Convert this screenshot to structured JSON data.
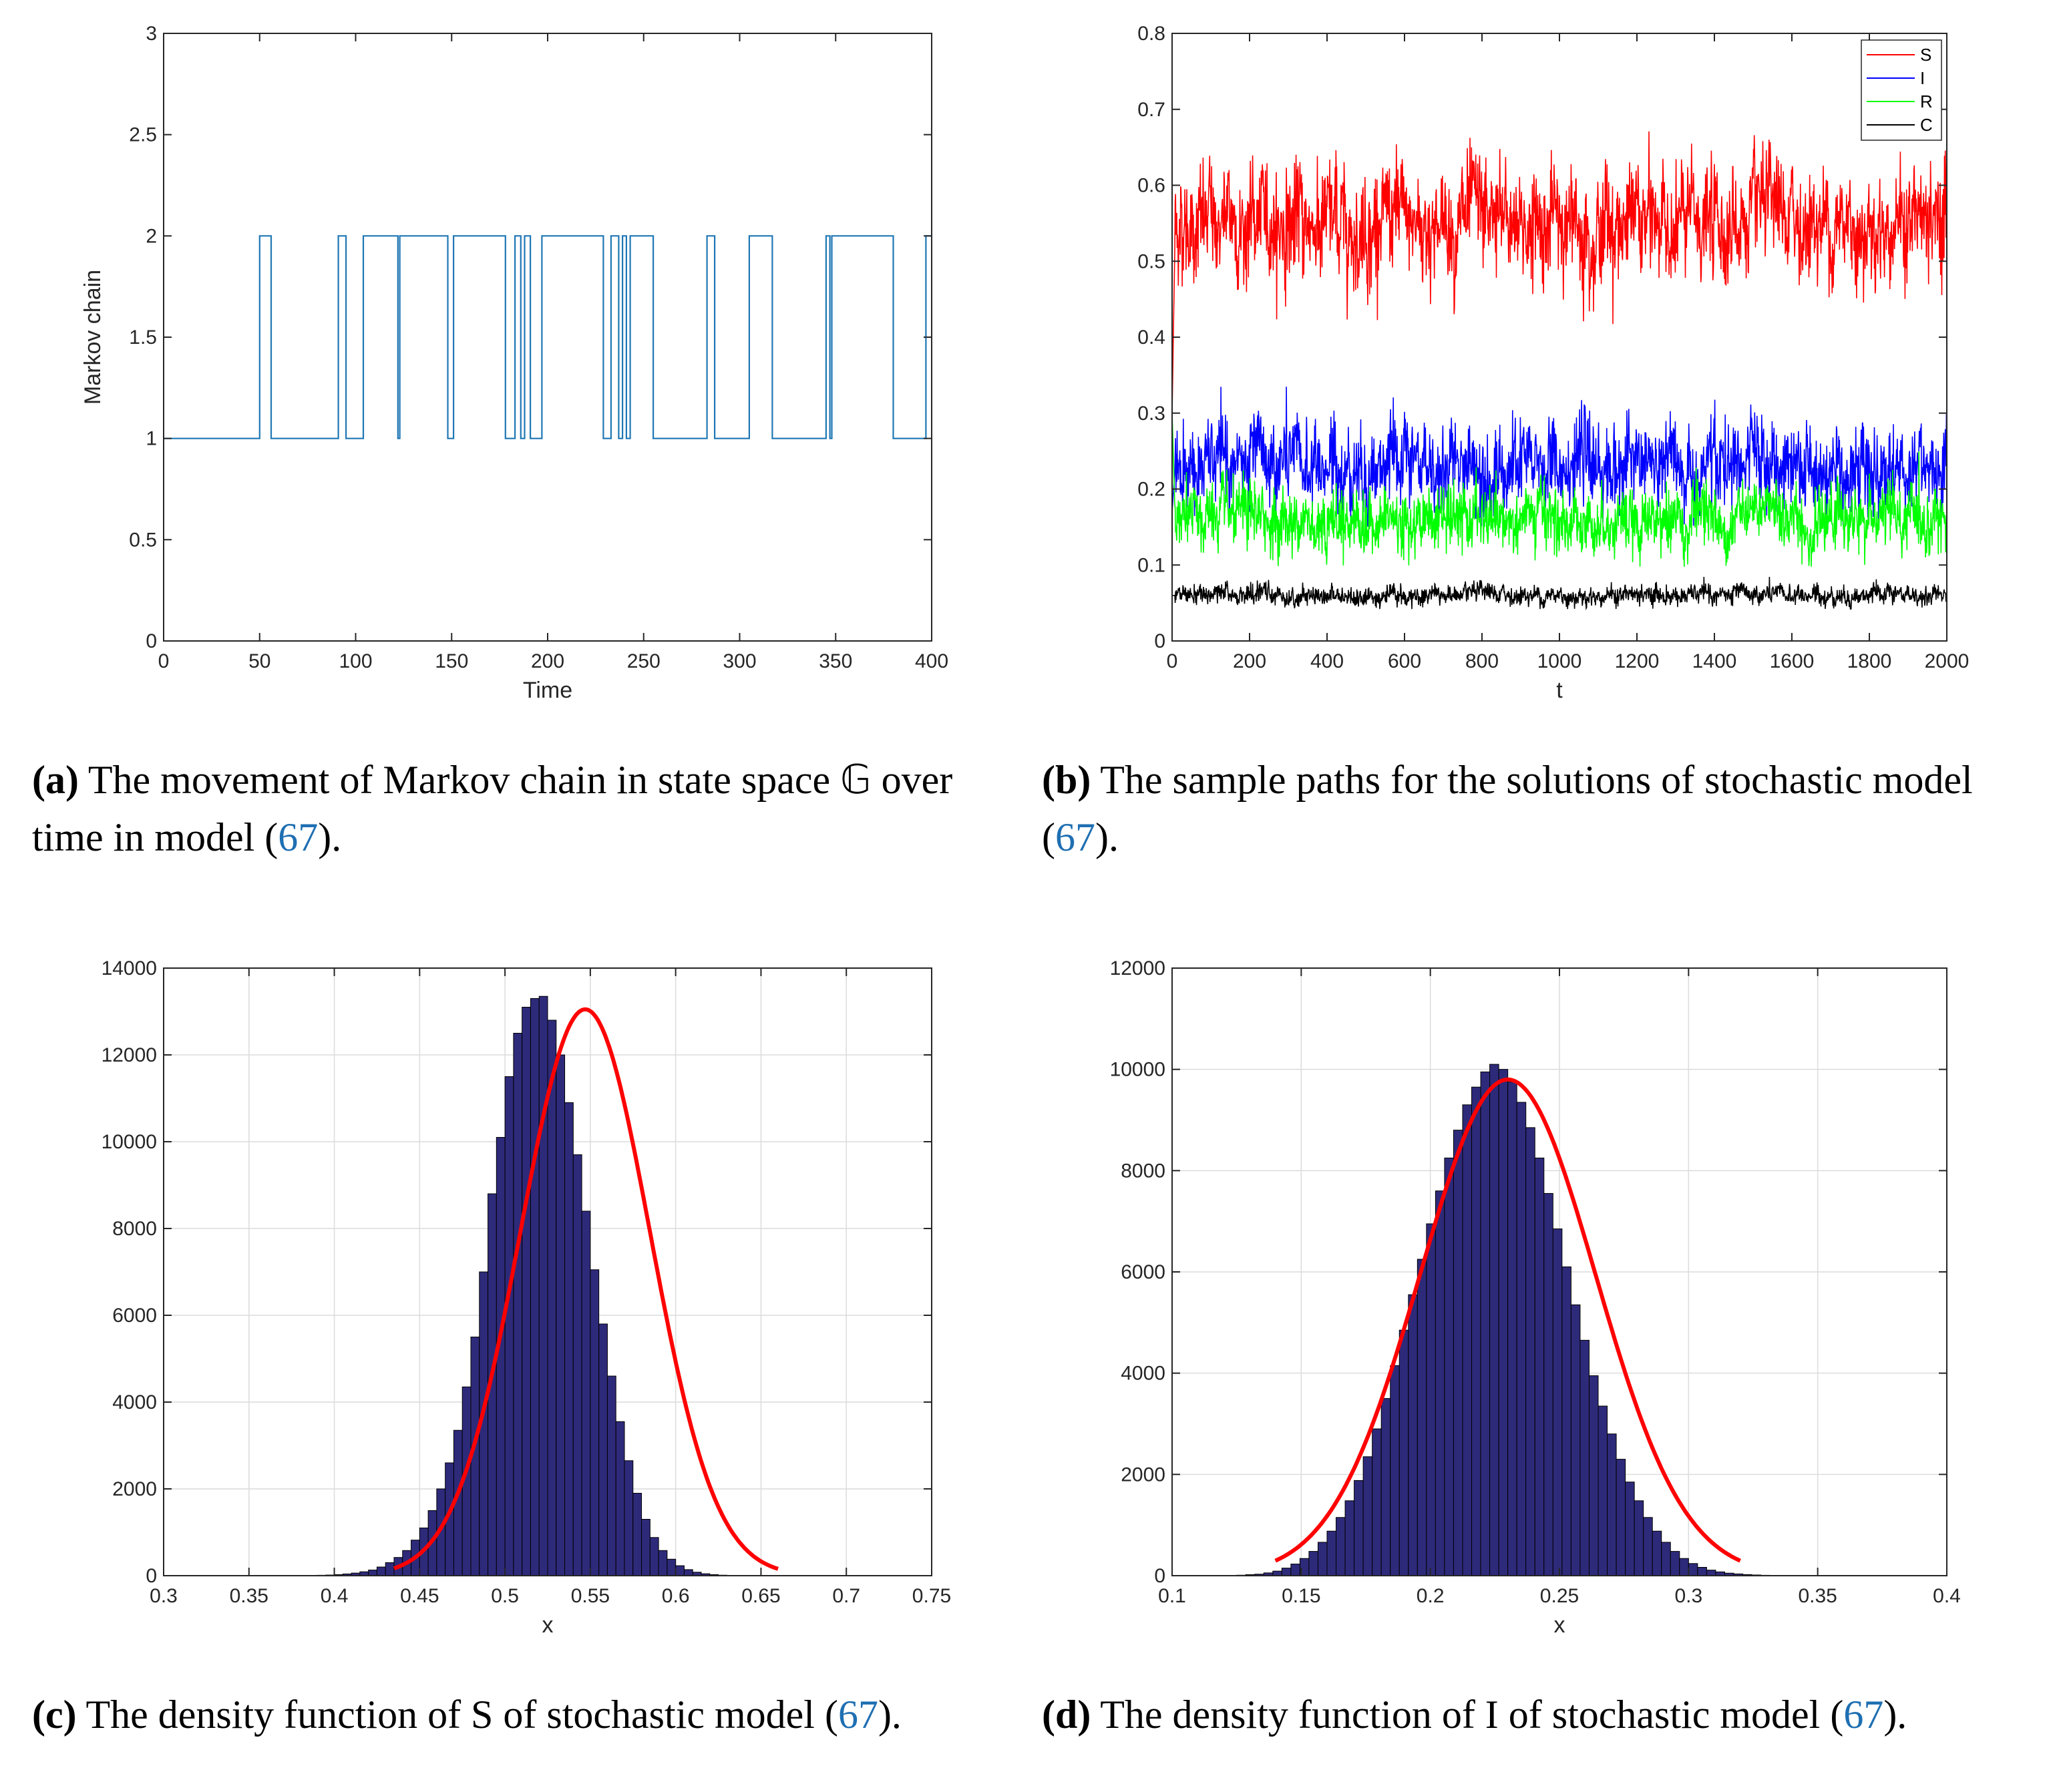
{
  "panels": [
    {
      "id": "a",
      "caption_label": "(a)",
      "caption_before": "The movement of Markov chain in state space 𝔾 over time in model (",
      "caption_ref": "67",
      "caption_after": ")."
    },
    {
      "id": "b",
      "caption_label": "(b)",
      "caption_before": "The sample paths for the solutions of stochastic model (",
      "caption_ref": "67",
      "caption_after": ")."
    },
    {
      "id": "c",
      "caption_label": "(c)",
      "caption_before": "The density function of S of stochastic model (",
      "caption_ref": "67",
      "caption_after": ")."
    },
    {
      "id": "d",
      "caption_label": "(d)",
      "caption_before": "The density function of I of stochastic model (",
      "caption_ref": "67",
      "caption_after": ")."
    }
  ],
  "chart_data": [
    {
      "panel": "a",
      "type": "line",
      "step": true,
      "xlabel": "Time",
      "ylabel": "Markov chain",
      "xlim": [
        0,
        400
      ],
      "ylim": [
        0,
        3
      ],
      "xticks": [
        0,
        50,
        100,
        150,
        200,
        250,
        300,
        350,
        400
      ],
      "yticks": [
        0,
        0.5,
        1,
        1.5,
        2,
        2.5,
        3
      ],
      "grid": false,
      "color": "#1f77b4",
      "series": [
        {
          "name": "Markov chain",
          "x": [
            0,
            50,
            50,
            56,
            56,
            91,
            91,
            95,
            95,
            104,
            104,
            122,
            122,
            123,
            123,
            124,
            124,
            148,
            148,
            151,
            151,
            160,
            160,
            178,
            178,
            183,
            183,
            186,
            186,
            188,
            188,
            191,
            191,
            197,
            197,
            204,
            204,
            229,
            229,
            233,
            233,
            237,
            237,
            239,
            239,
            241,
            241,
            243,
            243,
            247,
            247,
            255,
            255,
            283,
            283,
            287,
            287,
            305,
            305,
            317,
            317,
            345,
            345,
            347,
            347,
            348,
            348,
            380,
            380,
            397,
            397,
            400
          ],
          "y": [
            1,
            1,
            2,
            2,
            1,
            1,
            2,
            2,
            1,
            1,
            2,
            2,
            1,
            1,
            2,
            2,
            2,
            2,
            1,
            1,
            2,
            2,
            2,
            2,
            1,
            1,
            2,
            2,
            1,
            1,
            2,
            2,
            1,
            1,
            2,
            2,
            2,
            2,
            1,
            1,
            2,
            2,
            1,
            1,
            2,
            2,
            1,
            1,
            2,
            2,
            2,
            2,
            1,
            1,
            2,
            2,
            1,
            1,
            2,
            2,
            1,
            1,
            2,
            2,
            1,
            1,
            2,
            2,
            1,
            1,
            2,
            2
          ]
        }
      ]
    },
    {
      "panel": "b",
      "type": "line",
      "xlabel": "t",
      "ylabel": "",
      "xlim": [
        0,
        2000
      ],
      "ylim": [
        0,
        0.8
      ],
      "xticks": [
        0,
        200,
        400,
        600,
        800,
        1000,
        1200,
        1400,
        1600,
        1800,
        2000
      ],
      "yticks": [
        0,
        0.1,
        0.2,
        0.3,
        0.4,
        0.5,
        0.6,
        0.7,
        0.8
      ],
      "grid": false,
      "legend": "top-right",
      "series": [
        {
          "name": "S",
          "color": "#ff0000",
          "start": 0.3,
          "mean": 0.55,
          "sd": 0.038,
          "min": 0.39,
          "max": 0.7
        },
        {
          "name": "I",
          "color": "#0000ff",
          "start": 0.17,
          "mean": 0.23,
          "sd": 0.03,
          "min": 0.15,
          "max": 0.36
        },
        {
          "name": "R",
          "color": "#00ff00",
          "start": 0.3,
          "mean": 0.16,
          "sd": 0.022,
          "min": 0.095,
          "max": 0.25
        },
        {
          "name": "C",
          "color": "#000000",
          "start": 0.06,
          "mean": 0.06,
          "sd": 0.007,
          "min": 0.042,
          "max": 0.09
        }
      ]
    },
    {
      "panel": "c",
      "type": "bar",
      "histogram": true,
      "xlabel": "x",
      "ylabel": "",
      "xlim": [
        0.3,
        0.75
      ],
      "ylim": [
        0,
        14000
      ],
      "xticks": [
        0.3,
        0.35,
        0.4,
        0.45,
        0.5,
        0.55,
        0.6,
        0.65,
        0.7,
        0.75
      ],
      "yticks": [
        0,
        2000,
        4000,
        6000,
        8000,
        10000,
        12000,
        14000
      ],
      "grid": true,
      "bar_color": "#2e2a7a",
      "bin_start": 0.39,
      "bin_width": 0.005,
      "values": [
        10,
        15,
        25,
        40,
        60,
        90,
        130,
        200,
        300,
        420,
        580,
        820,
        1100,
        1500,
        2000,
        2600,
        3350,
        4350,
        5500,
        7000,
        8800,
        10100,
        11500,
        12500,
        13100,
        13300,
        13350,
        12800,
        12000,
        10900,
        9700,
        8400,
        7050,
        5800,
        4600,
        3550,
        2650,
        1900,
        1300,
        880,
        580,
        380,
        230,
        140,
        80,
        45,
        25,
        12,
        6,
        4
      ],
      "fit_curve": {
        "color": "#ff0000",
        "mu": 0.547,
        "sigma": 0.038,
        "peak": 13050,
        "x_from": 0.435,
        "x_to": 0.66
      }
    },
    {
      "panel": "d",
      "type": "bar",
      "histogram": true,
      "xlabel": "x",
      "ylabel": "",
      "xlim": [
        0.1,
        0.4
      ],
      "ylim": [
        0,
        12000
      ],
      "xticks": [
        0.1,
        0.15,
        0.2,
        0.25,
        0.3,
        0.35,
        0.4
      ],
      "yticks": [
        0,
        2000,
        4000,
        6000,
        8000,
        10000,
        12000
      ],
      "grid": true,
      "bar_color": "#2e2a7a",
      "bin_start": 0.125,
      "bin_width": 0.0035,
      "values": [
        10,
        20,
        30,
        55,
        90,
        150,
        230,
        340,
        480,
        660,
        880,
        1150,
        1480,
        1880,
        2350,
        2900,
        3500,
        4150,
        4850,
        5550,
        6250,
        6950,
        7600,
        8250,
        8800,
        9300,
        9650,
        9950,
        10100,
        10000,
        9750,
        9350,
        8850,
        8250,
        7550,
        6850,
        6100,
        5350,
        4650,
        3950,
        3350,
        2800,
        2300,
        1850,
        1480,
        1150,
        880,
        660,
        480,
        340,
        240,
        165,
        110,
        75,
        50,
        35,
        22,
        14,
        8,
        5,
        3
      ],
      "fit_curve": {
        "color": "#ff0000",
        "mu": 0.23,
        "sigma": 0.034,
        "peak": 9800,
        "x_from": 0.14,
        "x_to": 0.32
      }
    }
  ]
}
